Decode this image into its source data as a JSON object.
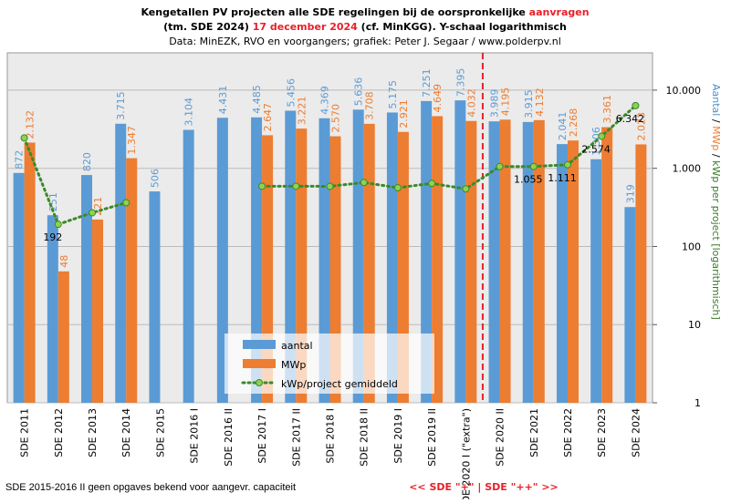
{
  "chart_data": {
    "type": "bar",
    "title": [
      {
        "text": "Kengetallen PV projecten alle SDE regelingen bij de oorspronkelijke ",
        "color": "#000000"
      },
      {
        "text": "aanvragen",
        "color": "#e8202a"
      }
    ],
    "subtitle": [
      {
        "text": "(tm. SDE 2024) ",
        "color": "#000000"
      },
      {
        "text": "17 december 2024",
        "color": "#e8202a"
      },
      {
        "text": " (cf. MinKGG).  Y-schaal logarithmisch",
        "color": "#000000"
      }
    ],
    "source": "Data: MinEZK, RVO en voorgangers;  grafiek: Peter J. Segaar / www.polderpv.nl",
    "y_axis_label": [
      {
        "text": "Aantal",
        "color": "#4a90d0"
      },
      {
        "text": " / ",
        "color": "#000000"
      },
      {
        "text": "MWp",
        "color": "#ed7d31"
      },
      {
        "text": " / ",
        "color": "#000000"
      },
      {
        "text": "kWp per project [logarithmisch]",
        "color": "#3a7a2a"
      }
    ],
    "footnote": "SDE 2015-2016  II geen opgaves bekend voor aangevr. capaciteit",
    "divider_label": "<<  SDE \"+\"  | SDE \"++\"  >>",
    "categories": [
      "SDE 2011",
      "SDE 2012",
      "SDE 2013",
      "SDE 2014",
      "SDE 2015",
      "SDE 2016 I",
      "SDE 2016 II",
      "SDE 2017 I",
      "SDE 2017 II",
      "SDE 2018 I",
      "SDE 2018 II",
      "SDE 2019 I",
      "SDE 2019 II",
      "SDE 2020 I (\"extra\")",
      "SDE 2020 II",
      "SDE 2021",
      "SDE 2022",
      "SDE 2023",
      "SDE 2024"
    ],
    "series": [
      {
        "name": "aantal",
        "color": "#5b9bd5",
        "values": [
          872,
          251,
          820,
          3715,
          506,
          3104,
          4431,
          4485,
          5456,
          4369,
          5636,
          5175,
          7251,
          7395,
          3989,
          3915,
          2041,
          1306,
          319
        ],
        "value_labels": [
          "872",
          "251",
          "820",
          "3.715",
          "506",
          "3.104",
          "4.431",
          "4.485",
          "5.456",
          "4.369",
          "5.636",
          "5.175",
          "7.251",
          "7.395",
          "3.989",
          "3.915",
          "2.041",
          "1.306",
          "319"
        ]
      },
      {
        "name": "MWp",
        "color": "#ed7d31",
        "values": [
          2132,
          48,
          221,
          1347,
          null,
          null,
          null,
          2647,
          3221,
          2570,
          3708,
          2921,
          4649,
          4032,
          4195,
          4132,
          2268,
          3361,
          2023
        ],
        "value_labels": [
          "2.132",
          "48",
          "221",
          "1.347",
          null,
          null,
          null,
          "2.647",
          "3.221",
          "2.570",
          "3.708",
          "2.921",
          "4.649",
          "4.032",
          "4.195",
          "4.132",
          "2.268",
          "3.361",
          "2.023"
        ]
      },
      {
        "name": "kWp/project gemiddeld",
        "type": "line",
        "color": "#3a8a2a",
        "marker_color": "#92d050",
        "values": [
          2445,
          192,
          270,
          363,
          null,
          null,
          null,
          590,
          590,
          588,
          658,
          564,
          641,
          545,
          1052,
          1055,
          1111,
          2574,
          6342
        ],
        "value_labels": [
          null,
          "192",
          null,
          null,
          null,
          null,
          null,
          null,
          null,
          null,
          null,
          null,
          null,
          null,
          null,
          "1.055",
          "1.111",
          "2.574",
          "6.342"
        ]
      }
    ],
    "ylim": [
      1,
      30000
    ],
    "log_scale": true,
    "yticks": [
      1,
      10,
      100,
      {
        "value": 1000,
        "label": "1.000"
      },
      {
        "value": 10000,
        "label": "10.000"
      }
    ],
    "grid": true,
    "legend_position": "bottom-center"
  }
}
